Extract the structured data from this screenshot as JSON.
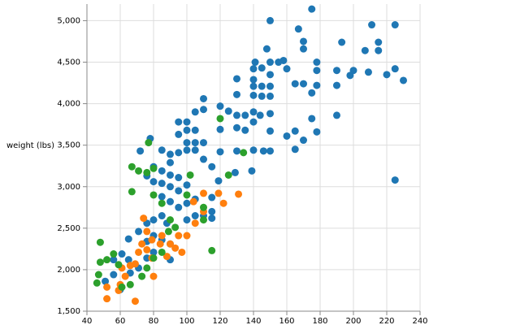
{
  "chart_data": {
    "type": "scatter",
    "y_label": "weight (lbs)",
    "xlim": [
      40,
      240
    ],
    "xticks": [
      40,
      60,
      80,
      100,
      120,
      140,
      160,
      180,
      200,
      220,
      240
    ],
    "ylim": [
      1500,
      5200
    ],
    "yticks": [
      {
        "value": 1500,
        "label": "1,500"
      },
      {
        "value": 2000,
        "label": "2,000"
      },
      {
        "value": 2500,
        "label": "2,500"
      },
      {
        "value": 3000,
        "label": "3,000"
      },
      {
        "value": 3500,
        "label": "3,500"
      },
      {
        "value": 4000,
        "label": "4,000"
      },
      {
        "value": 4500,
        "label": "4,500"
      },
      {
        "value": 5000,
        "label": "5,000"
      }
    ],
    "grid": true,
    "series": [
      {
        "color": "#1f77b4",
        "x": [
          150,
          175,
          211,
          225,
          167,
          170,
          170,
          215,
          215,
          193,
          207,
          148,
          158,
          155,
          150,
          145,
          140,
          141,
          130,
          130,
          140,
          140,
          140,
          145,
          145,
          150,
          150,
          150,
          160,
          165,
          178,
          178,
          178,
          190,
          190,
          200,
          198,
          209,
          220,
          225,
          230,
          170,
          175,
          120,
          110,
          105,
          105,
          110,
          120,
          125,
          130,
          130,
          135,
          135,
          140,
          140,
          144,
          150,
          150,
          165,
          160,
          175,
          178,
          190,
          165,
          170,
          140,
          146,
          150,
          130,
          139,
          129,
          100,
          100,
          100,
          100,
          95,
          95,
          95,
          105,
          105,
          110,
          110,
          115,
          120,
          119,
          85,
          90,
          90,
          85,
          80,
          80,
          76,
          72,
          78,
          225,
          85,
          90,
          95,
          100,
          85,
          90,
          95,
          100,
          105,
          115,
          115,
          115,
          110,
          85,
          88,
          80,
          76,
          71,
          80,
          85,
          90,
          76,
          65,
          61,
          65,
          56,
          66,
          56,
          51,
          71,
          76,
          60,
          80,
          90,
          100,
          105,
          95,
          90
        ],
        "values": [
          5000,
          5140,
          4950,
          4950,
          4900,
          4750,
          4660,
          4740,
          4640,
          4740,
          4640,
          4660,
          4520,
          4500,
          4500,
          4430,
          4420,
          4500,
          4300,
          4110,
          4290,
          4210,
          4100,
          4210,
          4090,
          4350,
          4210,
          4090,
          4420,
          4240,
          4500,
          4400,
          4220,
          4400,
          4220,
          4400,
          4340,
          4380,
          4350,
          4420,
          4280,
          4240,
          4130,
          3970,
          3930,
          3900,
          3680,
          4060,
          3690,
          3910,
          3860,
          3710,
          3860,
          3680,
          3900,
          3780,
          3860,
          3880,
          3670,
          3670,
          3610,
          3820,
          3660,
          3860,
          3450,
          3560,
          3440,
          3430,
          3430,
          3430,
          3190,
          3170,
          3780,
          3680,
          3530,
          3440,
          3780,
          3630,
          3410,
          3530,
          3440,
          3530,
          3330,
          3240,
          3420,
          3070,
          3440,
          3390,
          3290,
          3190,
          3240,
          3060,
          3130,
          3430,
          3580,
          3080,
          3040,
          3000,
          2950,
          3020,
          2880,
          2820,
          2750,
          2800,
          2850,
          2870,
          2700,
          2620,
          2650,
          2650,
          2560,
          2600,
          2560,
          2460,
          2410,
          2360,
          2310,
          2340,
          2370,
          2190,
          2120,
          2120,
          1960,
          1940,
          1860,
          2020,
          2140,
          1760,
          2210,
          2120,
          2600,
          2650,
          3110,
          3140
        ]
      },
      {
        "color": "#ff7f0e",
        "x": [
          52,
          52,
          59,
          60,
          63,
          61,
          66,
          69,
          73,
          71,
          76,
          79,
          80,
          69,
          74,
          76,
          85,
          90,
          88,
          93,
          95,
          100,
          97,
          105,
          104,
          110,
          110,
          119,
          122,
          131,
          79,
          84
        ],
        "values": [
          1650,
          1790,
          1750,
          1820,
          1920,
          2020,
          2050,
          2070,
          2310,
          2210,
          2240,
          2140,
          1920,
          1620,
          2620,
          2460,
          2410,
          2310,
          2160,
          2260,
          2410,
          2410,
          2210,
          2560,
          2820,
          2700,
          2920,
          2920,
          2800,
          2910,
          2360,
          2310
        ]
      },
      {
        "color": "#2ca02c",
        "x": [
          48,
          48,
          52,
          47,
          46,
          56,
          59,
          61,
          66,
          67,
          71,
          76,
          80,
          77,
          67,
          80,
          85,
          90,
          100,
          102,
          110,
          110,
          115,
          125,
          134,
          120,
          80,
          73,
          76,
          85,
          93,
          89
        ],
        "values": [
          2330,
          2090,
          2120,
          1940,
          1840,
          2190,
          2060,
          1790,
          1820,
          3240,
          3190,
          3170,
          3220,
          3530,
          2940,
          2900,
          2800,
          2600,
          2900,
          3140,
          2600,
          2750,
          2230,
          3140,
          3410,
          3820,
          2140,
          1920,
          2020,
          2210,
          2510,
          2460
        ]
      }
    ]
  }
}
